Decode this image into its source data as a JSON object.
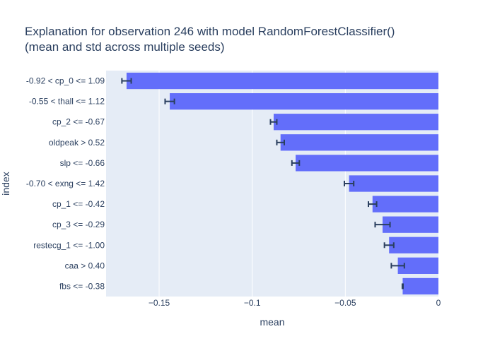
{
  "chart_data": {
    "type": "bar",
    "orientation": "horizontal",
    "title": "Explanation for observation 246 with model RandomForestClassifier()",
    "subtitle": "(mean and std across multiple seeds)",
    "xlabel": "mean",
    "ylabel": "index",
    "xlim": [
      -0.1785,
      0
    ],
    "xticks": [
      -0.15,
      -0.1,
      -0.05,
      0
    ],
    "xtick_labels": [
      "−0.15",
      "−0.1",
      "−0.05",
      "0"
    ],
    "grid": true,
    "colors": {
      "bar": "#636efa",
      "plot_bg": "#e5ecf6",
      "grid": "#ffffff",
      "error": "#2a3f5f"
    },
    "categories": [
      "-0.92 < cp_0 <= 1.09",
      "-0.55 < thall <= 1.12",
      "cp_2 <= -0.67",
      "oldpeak > 0.52",
      "slp <= -0.66",
      "-0.70 < exng <= 1.42",
      "cp_1 <= -0.42",
      "cp_3 <= -0.29",
      "restecg_1 <= -1.00",
      "caa > 0.40",
      "fbs <= -0.38"
    ],
    "values": [
      -0.1675,
      -0.1443,
      -0.0885,
      -0.0848,
      -0.0767,
      -0.048,
      -0.0354,
      -0.03,
      -0.0265,
      -0.0218,
      -0.0192
    ],
    "error": [
      0.0025,
      0.0025,
      0.0017,
      0.002,
      0.002,
      0.0025,
      0.0022,
      0.004,
      0.0025,
      0.0035,
      0.0002
    ]
  }
}
